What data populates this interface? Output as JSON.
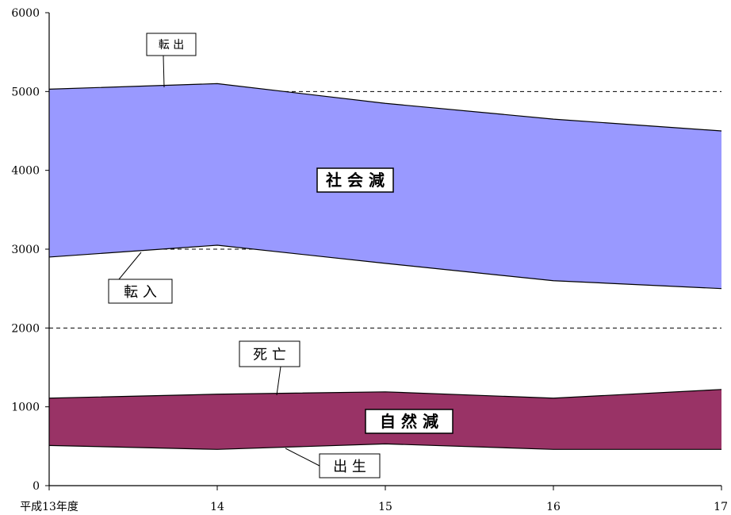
{
  "chart_data": {
    "type": "area",
    "x_categories": [
      "平成13年度",
      "14",
      "15",
      "16",
      "17"
    ],
    "ylim": [
      0,
      6000
    ],
    "y_ticks": [
      "0",
      "1000",
      "2000",
      "3000",
      "4000",
      "5000",
      "6000"
    ],
    "gridlines": [
      2000,
      3000,
      5000
    ],
    "series": [
      {
        "name": "転出",
        "values": [
          5030,
          5100,
          4850,
          4650,
          4500
        ]
      },
      {
        "name": "転入",
        "values": [
          2900,
          3050,
          2820,
          2600,
          2500
        ]
      },
      {
        "name": "死亡",
        "values": [
          1110,
          1160,
          1190,
          1110,
          1220
        ]
      },
      {
        "name": "出生",
        "values": [
          510,
          460,
          530,
          460,
          460
        ]
      }
    ],
    "bands": [
      {
        "label": "社 会 減",
        "upper": "転出",
        "lower": "転入",
        "color": "#9999ff"
      },
      {
        "label": "自 然 減",
        "upper": "死亡",
        "lower": "出生",
        "color": "#993366"
      }
    ],
    "callouts": {
      "tenshutsu": "転 出",
      "tennyu": "転 入",
      "shibo": "死 亡",
      "shussho": "出 生"
    }
  }
}
